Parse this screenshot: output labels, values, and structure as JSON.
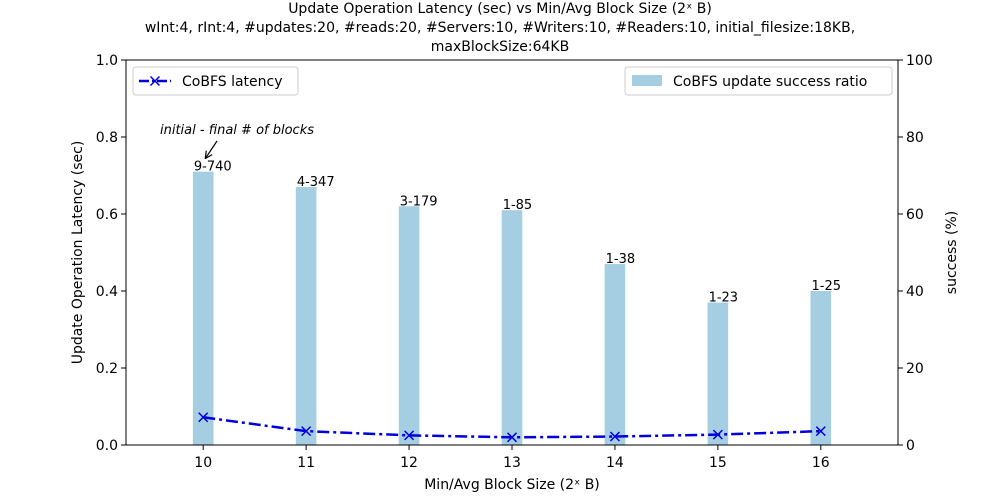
{
  "chart_data": {
    "type": "bar+line",
    "title": "Update Operation Latency (sec) vs Min/Avg Block Size (2ˣ B)",
    "subtitle_lines": [
      "wInt:4, rInt:4, #updates:20, #reads:20, #Servers:10, #Writers:10, #Readers:10, initial_filesize:18KB,",
      "maxBlockSize:64KB"
    ],
    "xlabel": "Min/Avg Block Size (2ˣ B)",
    "ylabel": "Update Operation Latency (sec)",
    "y2label": "success (%)",
    "categories": [
      "10",
      "11",
      "12",
      "13",
      "14",
      "15",
      "16"
    ],
    "ylim": [
      0,
      1.0
    ],
    "y2lim": [
      0,
      100
    ],
    "yticks": [
      "0.0",
      "0.2",
      "0.4",
      "0.6",
      "0.8",
      "1.0"
    ],
    "y2ticks": [
      "0",
      "20",
      "40",
      "60",
      "80",
      "100"
    ],
    "series": [
      {
        "name": "CoBFS latency",
        "kind": "line",
        "axis": "left",
        "color": "#0000dd",
        "marker": "x",
        "linestyle": "dashdot",
        "values": [
          0.072,
          0.036,
          0.025,
          0.02,
          0.022,
          0.027,
          0.036
        ]
      },
      {
        "name": "CoBFS update success ratio",
        "kind": "bar",
        "axis": "right",
        "color": "#a6cee3",
        "values": [
          71,
          67,
          62,
          61,
          47,
          37,
          40
        ]
      }
    ],
    "bar_labels": [
      "9-740",
      "4-347",
      "3-179",
      "1-85",
      "1-38",
      "1-23",
      "1-25"
    ],
    "annotation": {
      "text": "initial - final # of blocks",
      "target_index": 0
    },
    "legend": {
      "line": "upper left",
      "bar": "upper right"
    }
  }
}
